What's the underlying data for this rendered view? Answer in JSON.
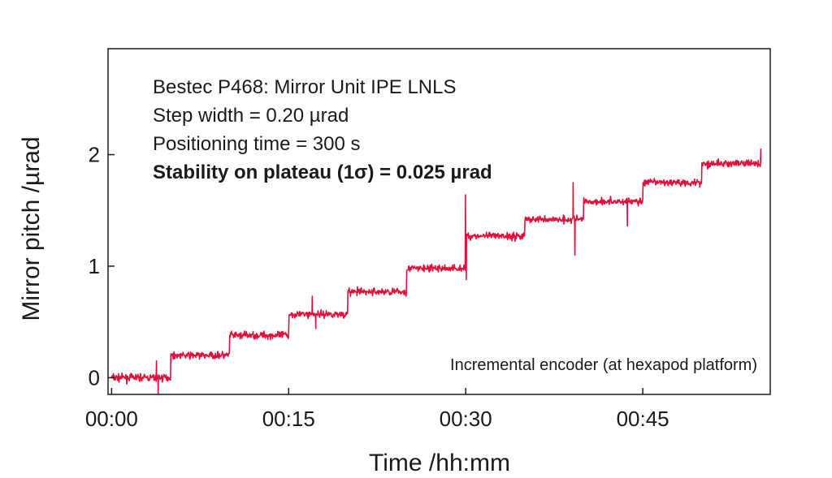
{
  "chart_data": {
    "type": "line",
    "title": "",
    "xlabel": "Time /hh:mm",
    "ylabel": "Mirror pitch /µrad",
    "x_ticks": [
      {
        "value": 0,
        "label": "00:00"
      },
      {
        "value": 15,
        "label": "00:15"
      },
      {
        "value": 30,
        "label": "00:30"
      },
      {
        "value": 45,
        "label": "00:45"
      }
    ],
    "y_ticks": [
      {
        "value": 0,
        "label": "0"
      },
      {
        "value": 1,
        "label": "1"
      },
      {
        "value": 2,
        "label": "2"
      }
    ],
    "xlim": [
      -0.3,
      55.8
    ],
    "ylim": [
      -0.15,
      2.95
    ],
    "x_unit": "minutes",
    "grid": false,
    "annotations": [
      {
        "text": "Bestec P468: Mirror Unit IPE LNLS",
        "bold": false
      },
      {
        "text": "Step width = 0.20 µrad",
        "bold": false
      },
      {
        "text": "Positioning time = 300 s",
        "bold": false
      },
      {
        "text": "Stability on plateau (1σ) = 0.025 µrad",
        "bold": true
      }
    ],
    "series": [
      {
        "name": "Incremental encoder (at hexapod platform)",
        "color": "#e0103a",
        "x": [
          0,
          5,
          10,
          15,
          20,
          25,
          30,
          35,
          40,
          45,
          50,
          55
        ],
        "y": [
          0.0,
          0.2,
          0.38,
          0.57,
          0.77,
          0.98,
          1.27,
          1.42,
          1.58,
          1.75,
          1.92,
          1.92
        ],
        "noise_sigma": 0.025,
        "spikes": [
          {
            "x": 3.8,
            "y": 0.15
          },
          {
            "x": 3.95,
            "y": -0.14
          },
          {
            "x": 17.0,
            "y": 0.73
          },
          {
            "x": 17.3,
            "y": 0.44
          },
          {
            "x": 29.98,
            "y": 1.64
          },
          {
            "x": 30.05,
            "y": 0.88
          },
          {
            "x": 39.1,
            "y": 1.75
          },
          {
            "x": 39.25,
            "y": 1.1
          },
          {
            "x": 43.7,
            "y": 1.36
          },
          {
            "x": 55.0,
            "y": 2.05
          }
        ]
      }
    ]
  }
}
